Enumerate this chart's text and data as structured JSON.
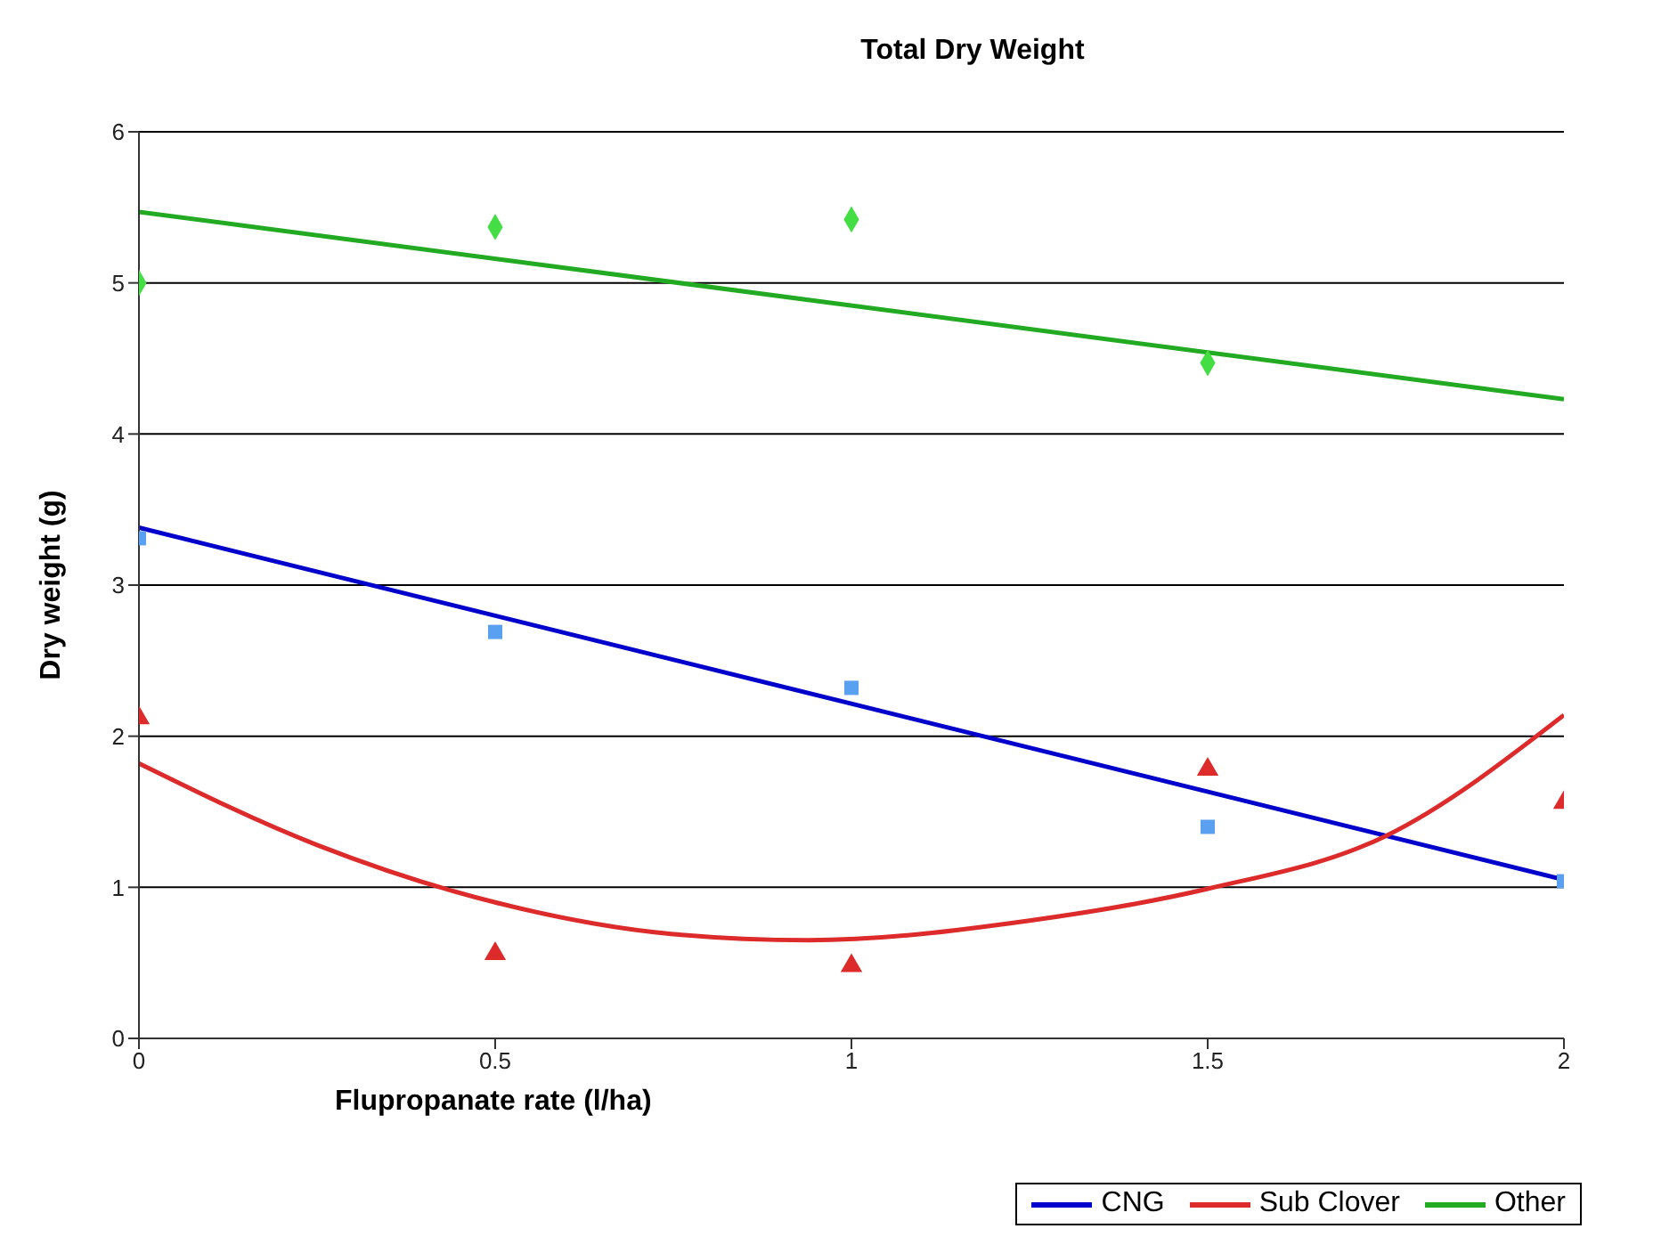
{
  "chart_data": {
    "type": "scatter",
    "title": "Total Dry Weight",
    "xlabel": "Flupropanate rate (l/ha)",
    "ylabel": "Dry weight (g)",
    "xlim": [
      0,
      2
    ],
    "xticks": [
      0,
      0.5,
      1,
      1.5,
      2
    ],
    "ylim": [
      0,
      6
    ],
    "yticks": [
      0,
      1,
      2,
      3,
      4,
      5,
      6
    ],
    "grid": "y",
    "legend": "bottom right",
    "series": [
      {
        "marker": "square",
        "color": "#5aa0f0",
        "x": [
          0,
          0.5,
          1,
          1.5,
          2
        ],
        "values": [
          3.31,
          2.69,
          2.32,
          1.4,
          1.04
        ]
      },
      {
        "marker": "triangle",
        "color": "#dd2a2a",
        "x": [
          0,
          0.5,
          1,
          1.5,
          2
        ],
        "values": [
          2.12,
          0.56,
          0.48,
          1.78,
          1.56
        ]
      },
      {
        "marker": "diamond",
        "color": "#44dd44",
        "x": [
          0,
          0.5,
          1,
          1.5
        ],
        "values": [
          5.0,
          5.37,
          5.42,
          4.47
        ]
      },
      {
        "type": "line",
        "name": "CNG",
        "marker": "none",
        "color": "#0000cc",
        "x": [
          0,
          2
        ],
        "values": [
          3.38,
          1.05
        ]
      },
      {
        "type": "line",
        "name": "Sub Clover",
        "marker": "none",
        "color": "#dd2a2a",
        "x": [
          0,
          0.25,
          0.5,
          0.75,
          0.94,
          1.25,
          1.5,
          1.75,
          2
        ],
        "values": [
          1.82,
          1.28,
          0.9,
          0.69,
          0.65,
          0.78,
          0.99,
          1.34,
          2.14
        ]
      },
      {
        "type": "line",
        "name": "Other",
        "marker": "none",
        "color": "#22aa22",
        "x": [
          0,
          2
        ],
        "values": [
          5.47,
          4.23
        ]
      }
    ]
  }
}
